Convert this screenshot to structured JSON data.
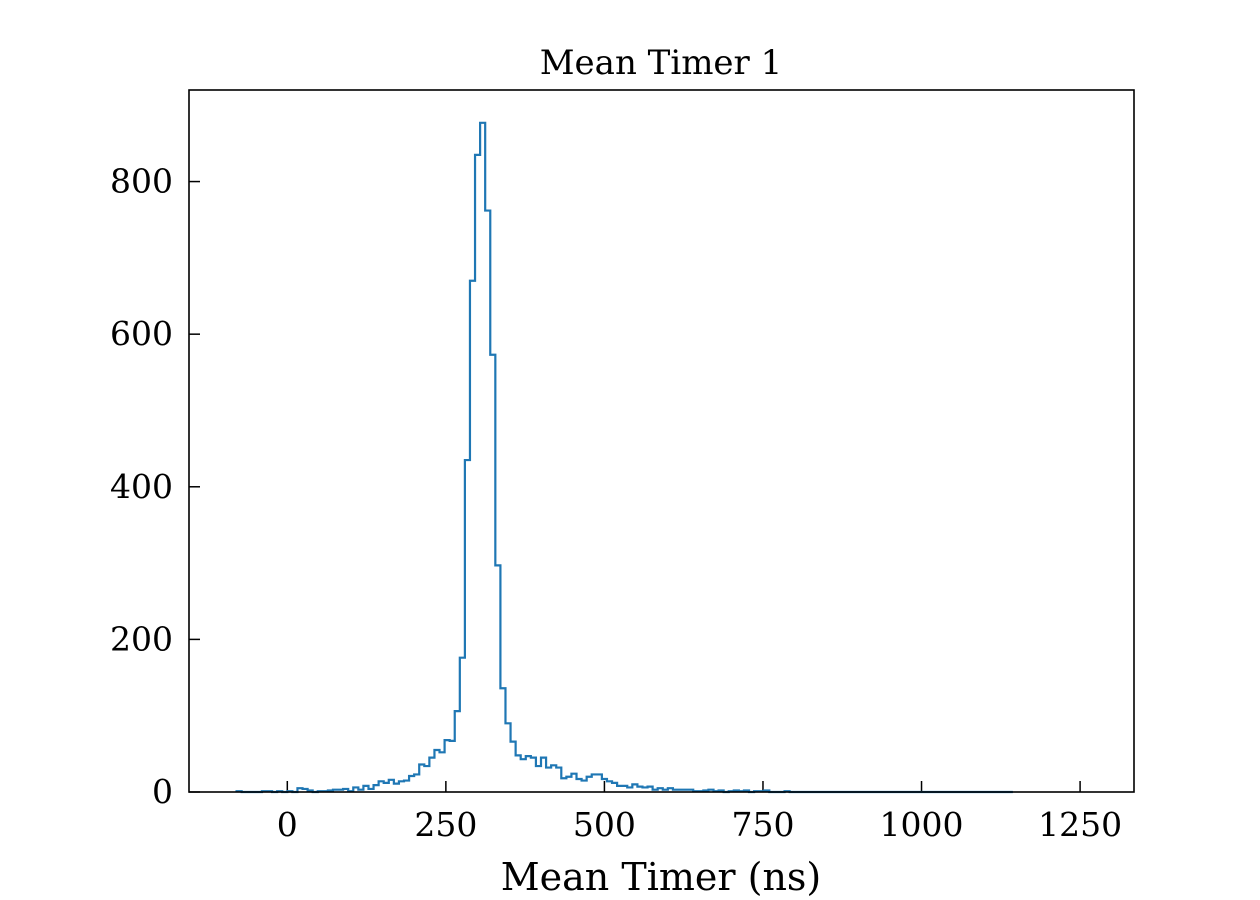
{
  "chart_data": {
    "type": "histogram",
    "title": "Mean Timer 1",
    "xlabel": "Mean Timer (ns)",
    "ylabel": "",
    "xlim": [
      -155,
      1335
    ],
    "ylim": [
      0,
      920
    ],
    "x_ticks": [
      0,
      250,
      500,
      750,
      1000,
      1250
    ],
    "y_ticks": [
      0,
      200,
      400,
      600,
      800
    ],
    "grid": false,
    "series_color": "#1f77b4",
    "bin_width": 8,
    "bin_start": -80,
    "counts": [
      1,
      0,
      0,
      0,
      0,
      1,
      1,
      0,
      1,
      0,
      1,
      0,
      5,
      4,
      2,
      0,
      1,
      1,
      2,
      3,
      3,
      4,
      1,
      6,
      3,
      8,
      4,
      9,
      14,
      12,
      16,
      11,
      14,
      15,
      21,
      23,
      36,
      34,
      45,
      55,
      52,
      68,
      67,
      106,
      176,
      435,
      670,
      835,
      877,
      762,
      573,
      297,
      136,
      90,
      66,
      48,
      43,
      47,
      45,
      34,
      45,
      32,
      35,
      32,
      18,
      20,
      24,
      17,
      15,
      20,
      23,
      23,
      17,
      14,
      12,
      8,
      8,
      6,
      10,
      7,
      6,
      7,
      3,
      5,
      3,
      5,
      3,
      3,
      3,
      3,
      1,
      1,
      2,
      3,
      1,
      2,
      0,
      1,
      2,
      1,
      2,
      0,
      1,
      1,
      2,
      0,
      0,
      0,
      1,
      0,
      0,
      0,
      0,
      0,
      0,
      0,
      0,
      0,
      0,
      0,
      0,
      0,
      0,
      0,
      0,
      0,
      0,
      0,
      0,
      0,
      0,
      0,
      0,
      0,
      0,
      0,
      0,
      0,
      0,
      0,
      0,
      0,
      0,
      0,
      0,
      0,
      0,
      0,
      0,
      0,
      0,
      0,
      0
    ]
  }
}
